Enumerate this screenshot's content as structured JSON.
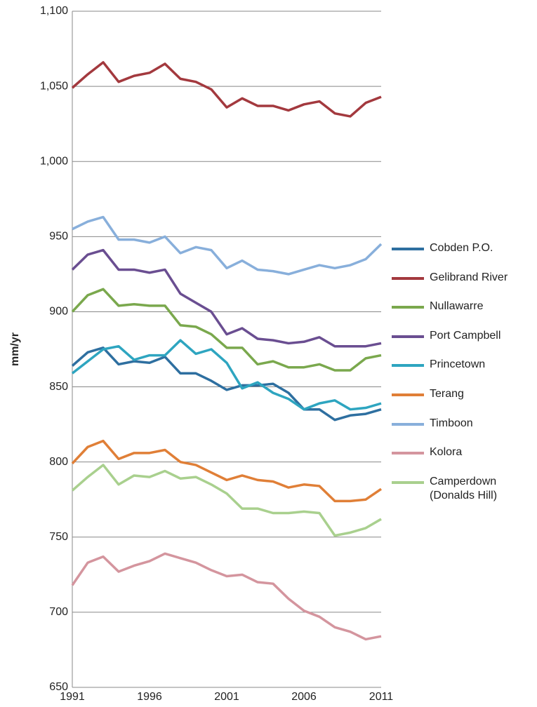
{
  "chart_data": {
    "type": "line",
    "y_label": "mm/yr",
    "x": [
      1991,
      1992,
      1993,
      1994,
      1995,
      1996,
      1997,
      1998,
      1999,
      2000,
      2001,
      2002,
      2003,
      2004,
      2005,
      2006,
      2007,
      2008,
      2009,
      2010,
      2011
    ],
    "xlim": [
      1991,
      2011
    ],
    "xticks": [
      1991,
      1996,
      2001,
      2006,
      2011
    ],
    "ylim": [
      650,
      1100
    ],
    "yticks": [
      650,
      700,
      750,
      800,
      850,
      900,
      950,
      {
        "value": 1000,
        "label": "1,000"
      },
      {
        "value": 1050,
        "label": "1,050"
      },
      {
        "value": 1100,
        "label": "1,100"
      }
    ],
    "grid": true,
    "legend": "right",
    "series": [
      {
        "name": "Cobden P.O.",
        "color": "#2e6fa0",
        "values": [
          864,
          873,
          876,
          865,
          867,
          866,
          870,
          859,
          859,
          854,
          848,
          851,
          851,
          852,
          846,
          835,
          835,
          828,
          831,
          832,
          835
        ]
      },
      {
        "name": "Gelibrand River",
        "color": "#a3393e",
        "values": [
          1049,
          1058,
          1066,
          1053,
          1057,
          1059,
          1065,
          1055,
          1053,
          1048,
          1036,
          1042,
          1037,
          1037,
          1034,
          1038,
          1040,
          1032,
          1030,
          1039,
          1043
        ]
      },
      {
        "name": "Nullawarre",
        "color": "#7aa84d",
        "values": [
          900,
          911,
          915,
          904,
          905,
          904,
          904,
          891,
          890,
          885,
          876,
          876,
          865,
          867,
          863,
          863,
          865,
          861,
          861,
          869,
          871
        ]
      },
      {
        "name": "Port Campbell",
        "color": "#6a4e91",
        "values": [
          928,
          938,
          941,
          928,
          928,
          926,
          928,
          912,
          906,
          900,
          885,
          889,
          882,
          881,
          879,
          880,
          883,
          877,
          877,
          877,
          879
        ]
      },
      {
        "name": "Princetown",
        "color": "#2ea5c0",
        "values": [
          859,
          867,
          875,
          877,
          868,
          871,
          871,
          881,
          872,
          875,
          866,
          849,
          853,
          846,
          842,
          835,
          839,
          841,
          835,
          836,
          839
        ]
      },
      {
        "name": "Terang",
        "color": "#e07f37",
        "values": [
          799,
          810,
          814,
          802,
          806,
          806,
          808,
          800,
          798,
          793,
          788,
          791,
          788,
          787,
          783,
          785,
          784,
          774,
          774,
          775,
          782
        ]
      },
      {
        "name": "Timboon",
        "color": "#88afdb",
        "values": [
          955,
          960,
          963,
          948,
          948,
          946,
          950,
          939,
          943,
          941,
          929,
          934,
          928,
          927,
          925,
          928,
          931,
          929,
          931,
          935,
          945
        ]
      },
      {
        "name": "Kolora",
        "color": "#d4959e",
        "values": [
          718,
          733,
          737,
          727,
          731,
          734,
          739,
          736,
          733,
          728,
          724,
          725,
          720,
          719,
          709,
          701,
          697,
          690,
          687,
          682,
          684
        ]
      },
      {
        "name": "Camperdown (Donalds Hill)",
        "color": "#a9d08e",
        "values": [
          781,
          790,
          798,
          785,
          791,
          790,
          794,
          789,
          790,
          785,
          779,
          769,
          769,
          766,
          766,
          767,
          766,
          751,
          753,
          756,
          762
        ]
      }
    ]
  }
}
